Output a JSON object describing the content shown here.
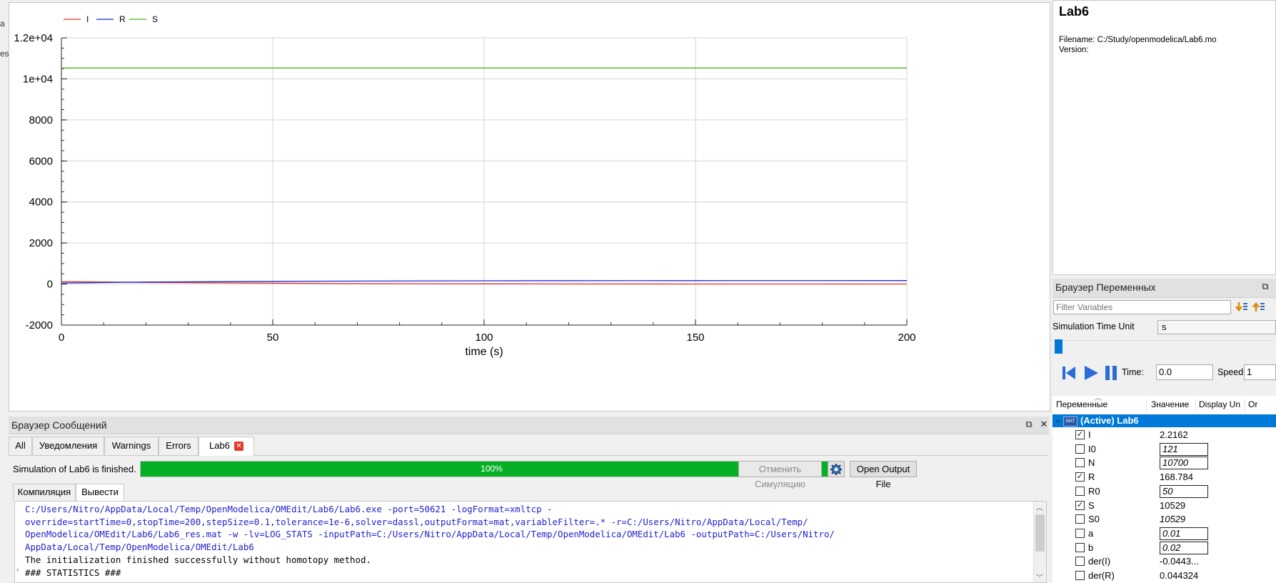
{
  "edge_fragments": [
    "a",
    "es"
  ],
  "chart_data": {
    "type": "line",
    "xlabel": "time (s)",
    "ylabel": "",
    "xlim": [
      0,
      200
    ],
    "ylim": [
      -2000,
      12000
    ],
    "x_ticks": [
      0,
      50,
      100,
      150,
      200
    ],
    "x_tick_labels": [
      "0",
      "50",
      "100",
      "150",
      "200"
    ],
    "y_ticks": [
      -2000,
      0,
      2000,
      4000,
      6000,
      8000,
      10000,
      12000
    ],
    "y_tick_labels": [
      "-2000",
      "0",
      "2000",
      "4000",
      "6000",
      "8000",
      "1e+04",
      "1.2e+04"
    ],
    "grid": true,
    "legend_position": "top-left",
    "series": [
      {
        "name": "I",
        "color": "#e0342c",
        "x": [
          0,
          10,
          20,
          40,
          65,
          100,
          150,
          200
        ],
        "values": [
          121,
          100,
          80,
          55,
          25,
          10,
          4,
          2.2
        ]
      },
      {
        "name": "R",
        "color": "#1f2ad4",
        "x": [
          0,
          10,
          20,
          40,
          65,
          100,
          150,
          200
        ],
        "values": [
          50,
          72,
          95,
          118,
          142,
          158,
          166,
          168.8
        ]
      },
      {
        "name": "S",
        "color": "#4caf22",
        "x": [
          0,
          50,
          100,
          150,
          200
        ],
        "values": [
          10529,
          10529,
          10529,
          10529,
          10529
        ]
      }
    ]
  },
  "message_browser": {
    "title": "Браузер Сообщений",
    "tabs": [
      "All",
      "Уведомления",
      "Warnings",
      "Errors",
      "Lab6"
    ],
    "status_text": "Simulation of Lab6 is finished.",
    "progress_percent": 100,
    "progress_label": "100%",
    "cancel_label": "Отменить Симуляцию",
    "open_output_label": "Open Output File",
    "subtabs": [
      "Компиляция",
      "Вывести"
    ],
    "output_lines": [
      "C:/Users/Nitro/AppData/Local/Temp/OpenModelica/OMEdit/Lab6/Lab6.exe -port=50621 -logFormat=xmltcp -",
      "override=startTime=0,stopTime=200,stepSize=0.1,tolerance=1e-6,solver=dassl,outputFormat=mat,variableFilter=.* -r=C:/Users/Nitro/AppData/Local/Temp/",
      "OpenModelica/OMEdit/Lab6/Lab6_res.mat -w -lv=LOG_STATS -inputPath=C:/Users/Nitro/AppData/Local/Temp/OpenModelica/OMEdit/Lab6 -outputPath=C:/Users/Nitro/",
      "AppData/Local/Temp/OpenModelica/OMEdit/Lab6",
      "The initialization finished successfully without homotopy method.",
      "### STATISTICS ###"
    ]
  },
  "model_info": {
    "title": "Lab6",
    "filename_line": "Filename: C:/Study/openmodelica/Lab6.mo",
    "version_line": "Version:"
  },
  "variables_browser": {
    "title": "Браузер Переменных",
    "filter_placeholder": "Filter Variables",
    "time_unit_label": "Simulation Time Unit",
    "time_unit_value": "s",
    "time_label": "Time:",
    "time_value": "0.0",
    "speed_label": "Speed:",
    "speed_value": "1",
    "columns": [
      "Переменные",
      "Значение",
      "Display Un",
      "Or"
    ],
    "root_badge": "MAT",
    "root_label": "(Active) Lab6",
    "variables": [
      {
        "name": "I",
        "value": "2.2162",
        "checked": true,
        "editable": false
      },
      {
        "name": "I0",
        "value": "121",
        "checked": false,
        "editable": true
      },
      {
        "name": "N",
        "value": "10700",
        "checked": false,
        "editable": true
      },
      {
        "name": "R",
        "value": "168.784",
        "checked": true,
        "editable": false
      },
      {
        "name": "R0",
        "value": "50",
        "checked": false,
        "editable": true
      },
      {
        "name": "S",
        "value": "10529",
        "checked": true,
        "editable": false
      },
      {
        "name": "S0",
        "value": "10529",
        "checked": false,
        "editable": false
      },
      {
        "name": "a",
        "value": "0.01",
        "checked": false,
        "editable": true
      },
      {
        "name": "b",
        "value": "0.02",
        "checked": false,
        "editable": true
      },
      {
        "name": "der(I)",
        "value": "-0.0443...",
        "checked": false,
        "editable": false
      },
      {
        "name": "der(R)",
        "value": "0.044324",
        "checked": false,
        "editable": false
      }
    ]
  }
}
